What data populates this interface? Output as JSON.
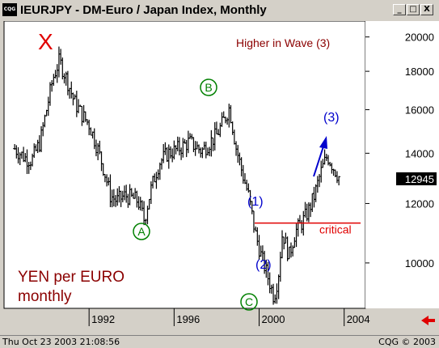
{
  "window": {
    "title": "IEURJPY - DM-Euro / Japan Index, Monthly",
    "icon_text": "CQG",
    "buttons": [
      "_",
      "□",
      "X"
    ]
  },
  "status": {
    "left": "Thu Oct 23 2003 21:08:56",
    "right": "CQG © 2003"
  },
  "last_price": "12945",
  "annotations": {
    "top_right": "Higher in Wave (3)",
    "critical": "critical",
    "bottom_left_line1": "YEN per EURO",
    "bottom_left_line2": "monthly",
    "x_mark": "X",
    "wave_a": "A",
    "wave_b": "B",
    "wave_c": "C",
    "wave_1": "(1)",
    "wave_2": "(2)",
    "wave_3": "(3)"
  },
  "colors": {
    "background": "#ffffff",
    "bars": "#000000",
    "red": "#e00000",
    "green": "#008000",
    "blue": "#0000cc",
    "brown": "#8b0000"
  },
  "chart_data": {
    "type": "bar",
    "x_ticks": [
      "1992",
      "1996",
      "2000",
      "2004"
    ],
    "y_ticks": [
      10000,
      12000,
      14000,
      16000,
      18000,
      20000
    ],
    "y_scale": "log",
    "ylim": [
      8700,
      21000
    ],
    "xlim": [
      1988.0,
      2005.0
    ],
    "critical_level": 11300,
    "series": [
      {
        "values": [
          [
            1988.5,
            14200
          ],
          [
            1989.0,
            13800
          ],
          [
            1989.3,
            13700
          ],
          [
            1989.7,
            14500
          ],
          [
            1990.0,
            16000
          ],
          [
            1990.3,
            17600
          ],
          [
            1990.6,
            18600
          ],
          [
            1991.0,
            17400
          ],
          [
            1991.3,
            16400
          ],
          [
            1991.7,
            15700
          ],
          [
            1992.0,
            15300
          ],
          [
            1992.4,
            14200
          ],
          [
            1992.7,
            13300
          ],
          [
            1993.0,
            12300
          ],
          [
            1993.3,
            12100
          ],
          [
            1993.7,
            12300
          ],
          [
            1994.0,
            12200
          ],
          [
            1994.3,
            12100
          ],
          [
            1994.6,
            11400
          ],
          [
            1994.9,
            12500
          ],
          [
            1995.3,
            13600
          ],
          [
            1995.7,
            14000
          ],
          [
            1996.0,
            14100
          ],
          [
            1996.4,
            14300
          ],
          [
            1996.7,
            14500
          ],
          [
            1997.0,
            14300
          ],
          [
            1997.3,
            14100
          ],
          [
            1997.7,
            14500
          ],
          [
            1998.0,
            14800
          ],
          [
            1998.3,
            15400
          ],
          [
            1998.6,
            16100
          ],
          [
            1998.9,
            14300
          ],
          [
            1999.2,
            13200
          ],
          [
            1999.5,
            12300
          ],
          [
            1999.8,
            11000
          ],
          [
            2000.1,
            10200
          ],
          [
            2000.4,
            9600
          ],
          [
            2000.7,
            9000
          ],
          [
            2000.9,
            9600
          ],
          [
            2001.1,
            11000
          ],
          [
            2001.4,
            10200
          ],
          [
            2001.7,
            11000
          ],
          [
            2002.0,
            11300
          ],
          [
            2002.3,
            11700
          ],
          [
            2002.6,
            12300
          ],
          [
            2002.9,
            13200
          ],
          [
            2003.2,
            13900
          ],
          [
            2003.5,
            13400
          ],
          [
            2003.8,
            12945
          ]
        ]
      }
    ]
  }
}
